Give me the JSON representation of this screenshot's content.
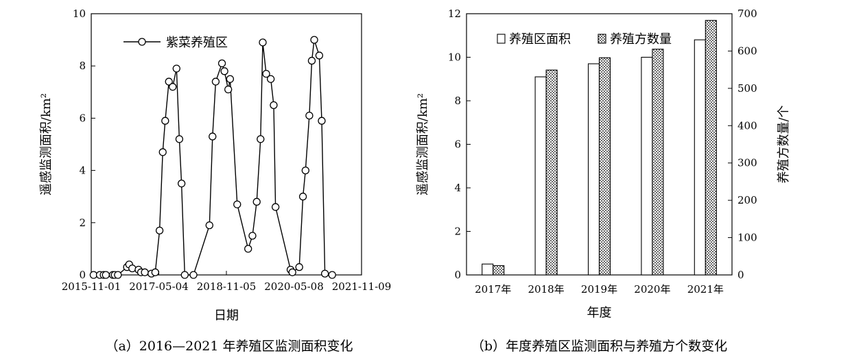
{
  "chart_data": [
    {
      "type": "line",
      "ylabel": "遥感监测面积/km²",
      "xlabel": "日期",
      "caption": "（a）2016—2021 年养殖区监测面积变化",
      "ylim": [
        0,
        10
      ],
      "yticks": [
        "0",
        "2",
        "4",
        "6",
        "8",
        "10"
      ],
      "xticks": [
        "2015-11-01",
        "2017-05-04",
        "2018-11-05",
        "2020-05-08",
        "2021-11-09"
      ],
      "xlim": [
        "2015-11-01",
        "2021-11-09"
      ],
      "legend_position": "top-left",
      "series": [
        {
          "name": "紫菜养殖区",
          "points": [
            [
              "2015-11-20",
              0.0
            ],
            [
              "2016-01-10",
              0.0
            ],
            [
              "2016-02-10",
              0.0
            ],
            [
              "2016-02-28",
              0.0
            ],
            [
              "2016-04-25",
              0.0
            ],
            [
              "2016-05-10",
              0.0
            ],
            [
              "2016-06-05",
              0.0
            ],
            [
              "2016-08-18",
              0.3
            ],
            [
              "2016-09-05",
              0.4
            ],
            [
              "2016-09-30",
              0.25
            ],
            [
              "2016-11-20",
              0.2
            ],
            [
              "2016-12-10",
              0.1
            ],
            [
              "2017-01-10",
              0.1
            ],
            [
              "2017-03-05",
              0.05
            ],
            [
              "2017-04-05",
              0.1
            ],
            [
              "2017-05-10",
              1.7
            ],
            [
              "2017-06-05",
              4.7
            ],
            [
              "2017-06-25",
              5.9
            ],
            [
              "2017-07-25",
              7.4
            ],
            [
              "2017-08-25",
              7.2
            ],
            [
              "2017-09-25",
              7.9
            ],
            [
              "2017-10-18",
              5.2
            ],
            [
              "2017-11-05",
              3.5
            ],
            [
              "2017-12-01",
              0.0
            ],
            [
              "2018-02-10",
              0.0
            ],
            [
              "2018-06-20",
              1.9
            ],
            [
              "2018-07-15",
              5.3
            ],
            [
              "2018-08-10",
              7.4
            ],
            [
              "2018-09-30",
              8.1
            ],
            [
              "2018-10-20",
              7.8
            ],
            [
              "2018-11-20",
              7.1
            ],
            [
              "2018-12-05",
              7.5
            ],
            [
              "2019-02-01",
              2.7
            ],
            [
              "2019-05-01",
              1.0
            ],
            [
              "2019-06-05",
              1.5
            ],
            [
              "2019-07-10",
              2.8
            ],
            [
              "2019-08-10",
              5.2
            ],
            [
              "2019-08-28",
              8.9
            ],
            [
              "2019-09-25",
              7.7
            ],
            [
              "2019-11-01",
              7.5
            ],
            [
              "2019-11-25",
              6.5
            ],
            [
              "2019-12-10",
              2.6
            ],
            [
              "2020-04-10",
              0.2
            ],
            [
              "2020-04-25",
              0.1
            ],
            [
              "2020-06-20",
              0.3
            ],
            [
              "2020-07-20",
              3.0
            ],
            [
              "2020-08-10",
              4.0
            ],
            [
              "2020-09-10",
              6.1
            ],
            [
              "2020-09-30",
              8.2
            ],
            [
              "2020-10-20",
              9.0
            ],
            [
              "2020-11-30",
              8.4
            ],
            [
              "2020-12-20",
              5.9
            ],
            [
              "2021-01-15",
              0.05
            ],
            [
              "2021-03-15",
              0.0
            ]
          ]
        }
      ]
    },
    {
      "type": "bar",
      "xlabel": "年度",
      "ylabel": "遥感监测面积/km²",
      "ylabel_right": "养殖方数量/个",
      "caption": "（b）年度养殖区监测面积与养殖方个数变化",
      "categories": [
        "2017年",
        "2018年",
        "2019年",
        "2020年",
        "2021年"
      ],
      "ylim": [
        0,
        12
      ],
      "ylim_right": [
        0,
        700
      ],
      "yticks": [
        "0",
        "2",
        "4",
        "6",
        "8",
        "10",
        "12"
      ],
      "yticks_right": [
        "0",
        "100",
        "200",
        "300",
        "400",
        "500",
        "600",
        "700"
      ],
      "legend_position": "top-left",
      "series": [
        {
          "name": "养殖区面积",
          "axis": "left",
          "pattern": "white",
          "values": [
            0.5,
            9.1,
            9.7,
            10.0,
            10.8
          ]
        },
        {
          "name": "养殖方数量",
          "axis": "right",
          "pattern": "dotted",
          "values": [
            25,
            549,
            582,
            605,
            682
          ]
        }
      ]
    }
  ]
}
